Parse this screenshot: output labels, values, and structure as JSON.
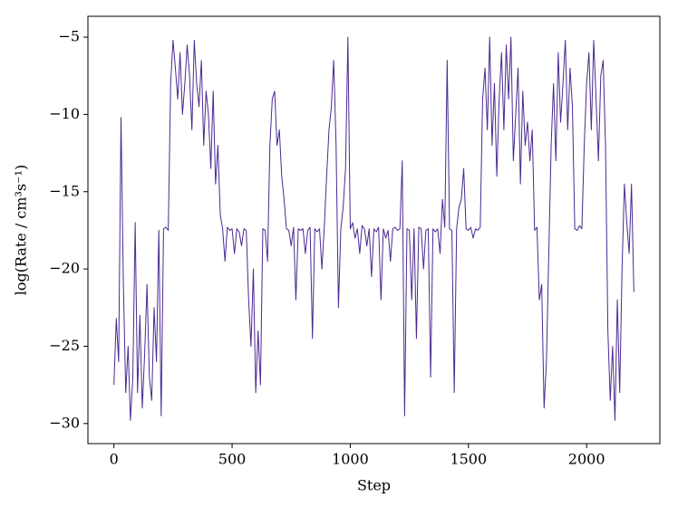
{
  "chart_data": {
    "type": "line",
    "xlabel": "Step",
    "ylabel": "log(Rate / cm³s⁻¹)",
    "color": "#4b2991",
    "xlim": [
      -110,
      2310
    ],
    "ylim": [
      -31.3,
      -3.65
    ],
    "xticks": [
      0,
      500,
      1000,
      1500,
      2000
    ],
    "yticks": [
      {
        "value": -30,
        "label": "−30"
      },
      {
        "value": -25,
        "label": "−25"
      },
      {
        "value": -20,
        "label": "−20"
      },
      {
        "value": -15,
        "label": "−15"
      },
      {
        "value": -10,
        "label": "−10"
      },
      {
        "value": -5,
        "label": "−5"
      }
    ],
    "x": [
      0,
      10,
      20,
      30,
      40,
      50,
      60,
      70,
      80,
      90,
      100,
      110,
      120,
      130,
      140,
      150,
      160,
      170,
      180,
      190,
      200,
      210,
      220,
      230,
      240,
      250,
      260,
      270,
      280,
      290,
      300,
      310,
      320,
      330,
      340,
      350,
      360,
      370,
      380,
      390,
      400,
      410,
      420,
      430,
      440,
      450,
      460,
      470,
      480,
      490,
      500,
      510,
      520,
      530,
      540,
      550,
      560,
      570,
      580,
      590,
      600,
      610,
      620,
      630,
      640,
      650,
      660,
      670,
      680,
      690,
      700,
      710,
      720,
      730,
      740,
      750,
      760,
      770,
      780,
      790,
      800,
      810,
      820,
      830,
      840,
      850,
      860,
      870,
      880,
      890,
      900,
      910,
      920,
      930,
      940,
      950,
      960,
      970,
      980,
      990,
      1000,
      1010,
      1020,
      1030,
      1040,
      1050,
      1060,
      1070,
      1080,
      1090,
      1100,
      1110,
      1120,
      1130,
      1140,
      1150,
      1160,
      1170,
      1180,
      1190,
      1200,
      1210,
      1220,
      1230,
      1240,
      1250,
      1260,
      1270,
      1280,
      1290,
      1300,
      1310,
      1320,
      1330,
      1340,
      1350,
      1360,
      1370,
      1380,
      1390,
      1400,
      1410,
      1420,
      1430,
      1440,
      1450,
      1460,
      1470,
      1480,
      1490,
      1500,
      1510,
      1520,
      1530,
      1540,
      1550,
      1560,
      1570,
      1580,
      1590,
      1600,
      1610,
      1620,
      1630,
      1640,
      1650,
      1660,
      1670,
      1680,
      1690,
      1700,
      1710,
      1720,
      1730,
      1740,
      1750,
      1760,
      1770,
      1780,
      1790,
      1800,
      1810,
      1820,
      1830,
      1840,
      1850,
      1860,
      1870,
      1880,
      1890,
      1900,
      1910,
      1920,
      1930,
      1940,
      1950,
      1960,
      1970,
      1980,
      1990,
      2000,
      2010,
      2020,
      2030,
      2040,
      2050,
      2060,
      2070,
      2080,
      2090,
      2100,
      2110,
      2120,
      2130,
      2140,
      2150,
      2160,
      2170,
      2180,
      2190,
      2200
    ],
    "values": [
      -27.5,
      -23.2,
      -26,
      -10.2,
      -21,
      -28,
      -25,
      -29.8,
      -27,
      -17,
      -28,
      -23,
      -29,
      -25.5,
      -21,
      -27,
      -28.5,
      -22.5,
      -26,
      -17.5,
      -29.5,
      -17.4,
      -17.3,
      -17.5,
      -8,
      -5.2,
      -7,
      -9,
      -6,
      -10,
      -8,
      -5.5,
      -7.5,
      -11,
      -5.2,
      -8,
      -9.5,
      -6.5,
      -12,
      -8.5,
      -10,
      -13.5,
      -8.5,
      -14.5,
      -12,
      -16.5,
      -17.4,
      -19.5,
      -17.3,
      -17.5,
      -17.4,
      -19,
      -17.4,
      -17.6,
      -18.5,
      -17.4,
      -17.5,
      -22,
      -25,
      -20,
      -28,
      -24,
      -27.5,
      -17.4,
      -17.5,
      -19.5,
      -12,
      -9,
      -8.5,
      -12,
      -11,
      -14,
      -15.5,
      -17.4,
      -17.5,
      -18.5,
      -17.3,
      -22,
      -17.4,
      -17.5,
      -17.4,
      -19,
      -17.5,
      -17.3,
      -24.5,
      -17.4,
      -17.6,
      -17.4,
      -20,
      -17.3,
      -14,
      -11,
      -9.5,
      -6.5,
      -12,
      -22.5,
      -17.4,
      -16,
      -13.5,
      -5,
      -17.4,
      -17,
      -18,
      -17.4,
      -19,
      -17.2,
      -17.4,
      -18.5,
      -17.4,
      -20.5,
      -17.4,
      -17.6,
      -17.3,
      -22,
      -17.4,
      -18,
      -17.5,
      -19.5,
      -17.4,
      -17.3,
      -17.5,
      -17.4,
      -13,
      -29.5,
      -17.4,
      -17.5,
      -22,
      -17.4,
      -24.5,
      -17.3,
      -17.4,
      -20,
      -17.5,
      -17.4,
      -27,
      -17.4,
      -17.6,
      -17.4,
      -19,
      -15.5,
      -17.3,
      -6.5,
      -17.4,
      -17.5,
      -28,
      -17.4,
      -16,
      -15.5,
      -13.5,
      -17.4,
      -17.5,
      -17.3,
      -18,
      -17.4,
      -17.5,
      -17.3,
      -9,
      -7,
      -11,
      -5,
      -12,
      -8,
      -14,
      -9,
      -6,
      -11,
      -5.5,
      -9,
      -5,
      -13,
      -10,
      -7,
      -14.5,
      -8.5,
      -12,
      -10.5,
      -13,
      -11,
      -17.5,
      -17.3,
      -22,
      -21,
      -29,
      -26,
      -19,
      -12,
      -8,
      -13,
      -6,
      -10.5,
      -8,
      -5.2,
      -11,
      -7,
      -9.5,
      -17.4,
      -17.5,
      -17.2,
      -17.4,
      -12,
      -8,
      -6,
      -11,
      -5.2,
      -9,
      -13,
      -7.5,
      -6.5,
      -12,
      -24,
      -28.5,
      -25,
      -29.8,
      -22,
      -28,
      -20,
      -14.5,
      -17,
      -19,
      -14.5,
      -21.5
    ]
  }
}
